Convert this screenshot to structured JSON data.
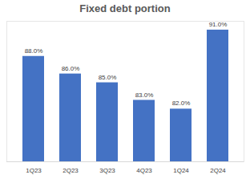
{
  "chart_data": {
    "type": "bar",
    "title": "Fixed debt portion",
    "categories": [
      "1Q23",
      "2Q23",
      "3Q23",
      "4Q23",
      "1Q24",
      "2Q24"
    ],
    "values": [
      88,
      86,
      85,
      83,
      82,
      91
    ],
    "value_labels": [
      "88.0%",
      "86.0%",
      "85.0%",
      "83.0%",
      "82.0%",
      "91.0%"
    ],
    "color": "#4472c4",
    "ylim": [
      76,
      92
    ],
    "data_labels": true,
    "tick_labels": "x",
    "grid": false
  }
}
